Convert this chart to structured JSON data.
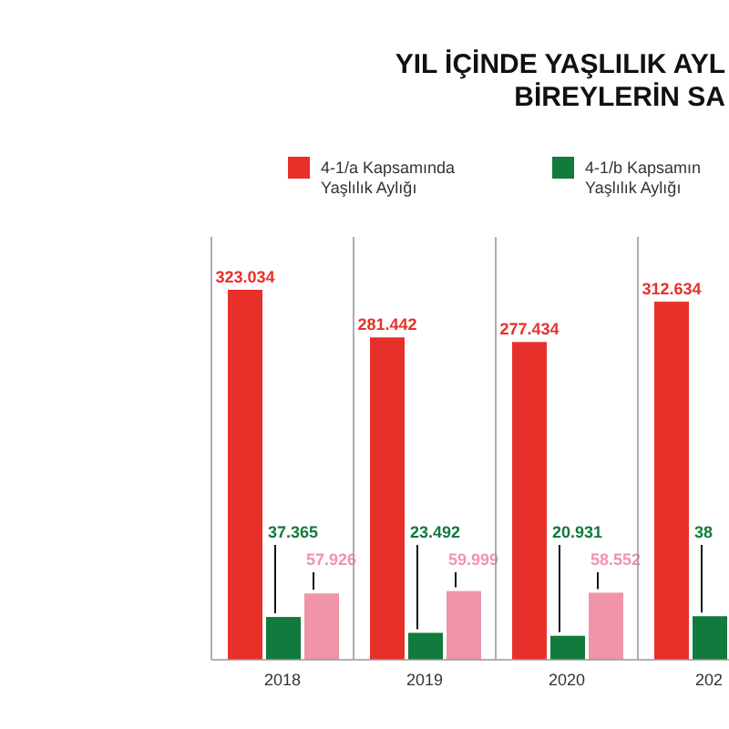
{
  "chart_data": {
    "type": "bar",
    "title": "YIL İÇİNDE YAŞLILIK AYL\nBİREYLERİN SA",
    "categories": [
      "2018",
      "2019",
      "2020",
      "202"
    ],
    "legend": "top",
    "series": [
      {
        "name": "4-1/a Kapsamında Yaşlılık Aylığı",
        "color": "#e8302a",
        "values": [
          323034,
          281442,
          277434,
          312634
        ],
        "value_labels": [
          "323.034",
          "281.442",
          "277.434",
          "312.634"
        ]
      },
      {
        "name": "4-1/b Kapsamın Yaşlılık Aylığı",
        "color": "#127a3c",
        "values": [
          37365,
          23492,
          20931,
          38000
        ],
        "value_labels": [
          "37.365",
          "23.492",
          "20.931",
          null
        ]
      },
      {
        "color": "#f094aa",
        "values": [
          57926,
          59999,
          58552,
          null
        ],
        "value_labels": [
          "57.926",
          "59.999",
          "58.552",
          null
        ]
      }
    ],
    "annotations": [
      {
        "text": "38",
        "x": "202",
        "y": 38000
      }
    ]
  }
}
